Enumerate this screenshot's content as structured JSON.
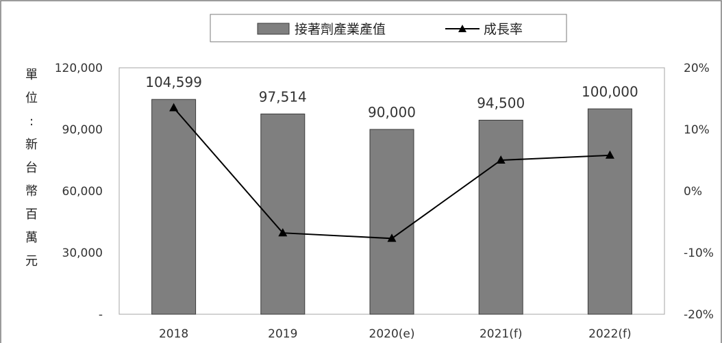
{
  "chart_data": {
    "type": "bar",
    "title": "",
    "ylabel": "單位:新台幣百萬元",
    "ylabel_chars": [
      "單",
      "位",
      ":",
      "新",
      "台",
      "幣",
      "百",
      "萬",
      "元"
    ],
    "categories": [
      "2018",
      "2019",
      "2020(e)",
      "2021(f)",
      "2022(f)"
    ],
    "series": [
      {
        "name": "接著劑產業產值",
        "type": "bar",
        "axis": "left",
        "values": [
          104599,
          97514,
          90000,
          94500,
          100000
        ],
        "labels": [
          "104,599",
          "97,514",
          "90,000",
          "94,500",
          "100,000"
        ]
      },
      {
        "name": "成長率",
        "type": "line",
        "axis": "right",
        "values": [
          13.5,
          -6.8,
          -7.7,
          5.0,
          5.8
        ],
        "marker": "triangle"
      }
    ],
    "y_left": {
      "min": 0,
      "max": 120000,
      "ticks": [
        0,
        30000,
        60000,
        90000,
        120000
      ],
      "tick_labels": [
        "-",
        "30,000",
        "60,000",
        "90,000",
        "120,000"
      ]
    },
    "y_right": {
      "min": -20,
      "max": 20,
      "ticks": [
        -20,
        -10,
        0,
        10,
        20
      ],
      "tick_labels": [
        "-20%",
        "-10%",
        "0%",
        "10%",
        "20%"
      ]
    },
    "grid": false,
    "legend_position": "top-center",
    "colors": {
      "bar": "#7f7f7f",
      "bar_edge": "#3a3a3a",
      "line": "#000000",
      "axis": "#a6a6a6"
    }
  }
}
